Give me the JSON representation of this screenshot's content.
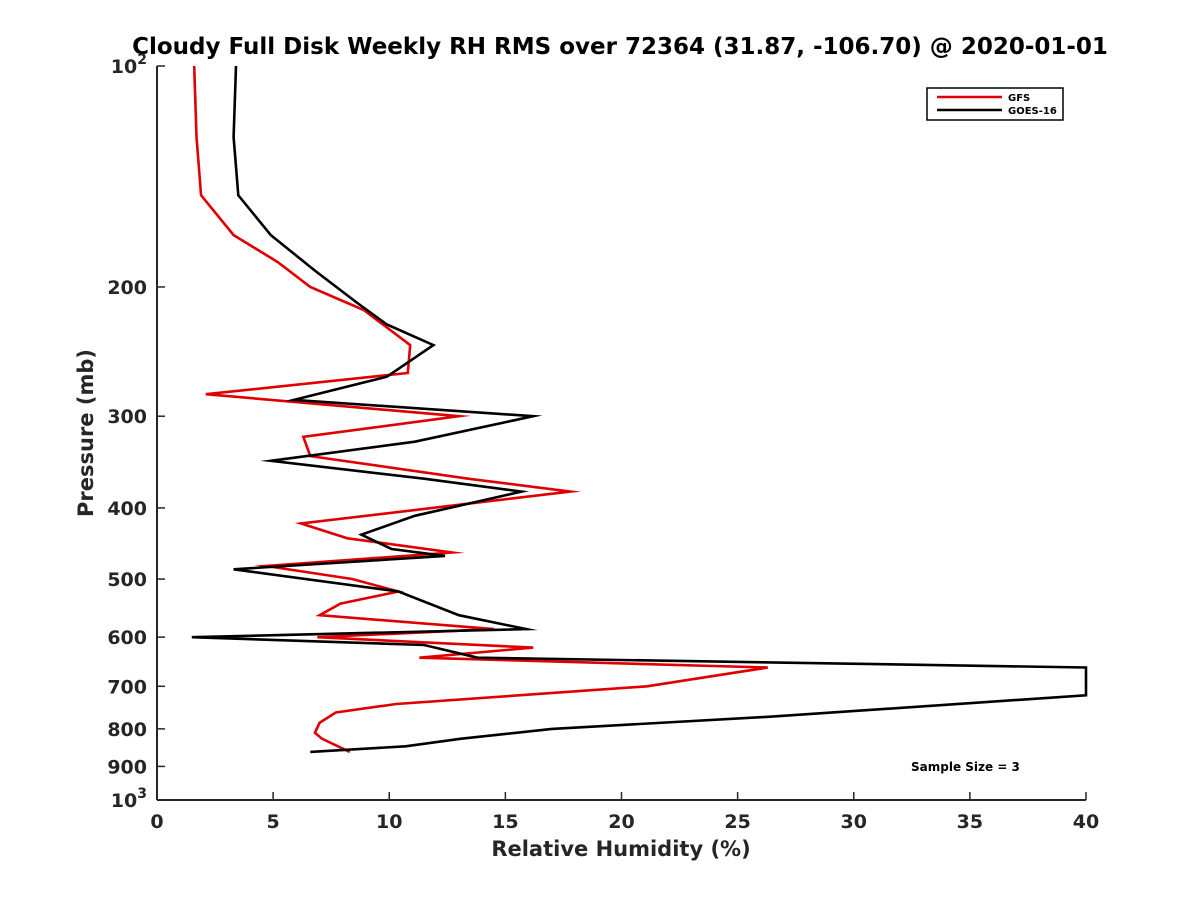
{
  "colors": {
    "gfs": "#e00000",
    "goes": "#000000",
    "axis": "#262626"
  },
  "chart_data": {
    "type": "line",
    "title": "Cloudy Full Disk Weekly RH RMS over 72364 (31.87, -106.70) @ 2020-01-01",
    "xlabel": "Relative Humidity (%)",
    "ylabel": "Pressure (mb)",
    "xlim": [
      0,
      40
    ],
    "ylim": [
      100,
      1000
    ],
    "yscale": "log",
    "yreversed": true,
    "grid": false,
    "legend_position": "top-right",
    "x_ticks": [
      {
        "value": 0,
        "label": "0"
      },
      {
        "value": 5,
        "label": "5"
      },
      {
        "value": 10,
        "label": "10"
      },
      {
        "value": 15,
        "label": "15"
      },
      {
        "value": 20,
        "label": "20"
      },
      {
        "value": 25,
        "label": "25"
      },
      {
        "value": 30,
        "label": "30"
      },
      {
        "value": 35,
        "label": "35"
      },
      {
        "value": 40,
        "label": "40"
      }
    ],
    "y_ticks": [
      {
        "value": 100,
        "base": "10",
        "exp": "2"
      },
      {
        "value": 200,
        "label": "200"
      },
      {
        "value": 300,
        "label": "300"
      },
      {
        "value": 400,
        "label": "400"
      },
      {
        "value": 500,
        "label": "500"
      },
      {
        "value": 600,
        "label": "600"
      },
      {
        "value": 700,
        "label": "700"
      },
      {
        "value": 800,
        "label": "800"
      },
      {
        "value": 900,
        "label": "900"
      },
      {
        "value": 1000,
        "base": "10",
        "exp": "3"
      }
    ],
    "series": [
      {
        "name": "GFS",
        "color": "#e00000",
        "points": [
          [
            1.6,
            100
          ],
          [
            1.7,
            125
          ],
          [
            1.9,
            150
          ],
          [
            3.3,
            170
          ],
          [
            5.2,
            185
          ],
          [
            6.6,
            200
          ],
          [
            8.9,
            215
          ],
          [
            10.9,
            240
          ],
          [
            10.8,
            262
          ],
          [
            2.1,
            280
          ],
          [
            13.0,
            300
          ],
          [
            6.3,
            320
          ],
          [
            6.6,
            340
          ],
          [
            13.4,
            365
          ],
          [
            17.8,
            380
          ],
          [
            6.2,
            420
          ],
          [
            8.2,
            440
          ],
          [
            12.7,
            460
          ],
          [
            4.7,
            480
          ],
          [
            8.4,
            500
          ],
          [
            10.4,
            520
          ],
          [
            7.9,
            540
          ],
          [
            7.0,
            560
          ],
          [
            14.5,
            585
          ],
          [
            6.9,
            600
          ],
          [
            16.2,
            620
          ],
          [
            11.3,
            640
          ],
          [
            26.3,
            660
          ],
          [
            21.1,
            700
          ],
          [
            10.3,
            740
          ],
          [
            7.7,
            760
          ],
          [
            7.0,
            785
          ],
          [
            6.8,
            810
          ],
          [
            7.1,
            825
          ],
          [
            8.3,
            860
          ]
        ]
      },
      {
        "name": "GOES-16",
        "color": "#000000",
        "points": [
          [
            3.4,
            100
          ],
          [
            3.3,
            125
          ],
          [
            3.5,
            150
          ],
          [
            4.9,
            170
          ],
          [
            6.8,
            190
          ],
          [
            8.6,
            210
          ],
          [
            9.9,
            225
          ],
          [
            11.9,
            240
          ],
          [
            9.9,
            265
          ],
          [
            5.9,
            285
          ],
          [
            16.2,
            300
          ],
          [
            11.1,
            325
          ],
          [
            4.9,
            345
          ],
          [
            11.5,
            365
          ],
          [
            15.7,
            380
          ],
          [
            11.1,
            410
          ],
          [
            8.8,
            435
          ],
          [
            10.1,
            455
          ],
          [
            12.4,
            465
          ],
          [
            3.3,
            485
          ],
          [
            10.4,
            520
          ],
          [
            13.0,
            560
          ],
          [
            15.9,
            585
          ],
          [
            1.5,
            600
          ],
          [
            11.5,
            615
          ],
          [
            13.8,
            640
          ],
          [
            40.0,
            660
          ],
          [
            40.0,
            720
          ],
          [
            26.4,
            770
          ],
          [
            17.0,
            800
          ],
          [
            13.1,
            825
          ],
          [
            10.7,
            845
          ],
          [
            6.6,
            860
          ]
        ]
      }
    ],
    "annotation": "Sample Size = 3"
  }
}
